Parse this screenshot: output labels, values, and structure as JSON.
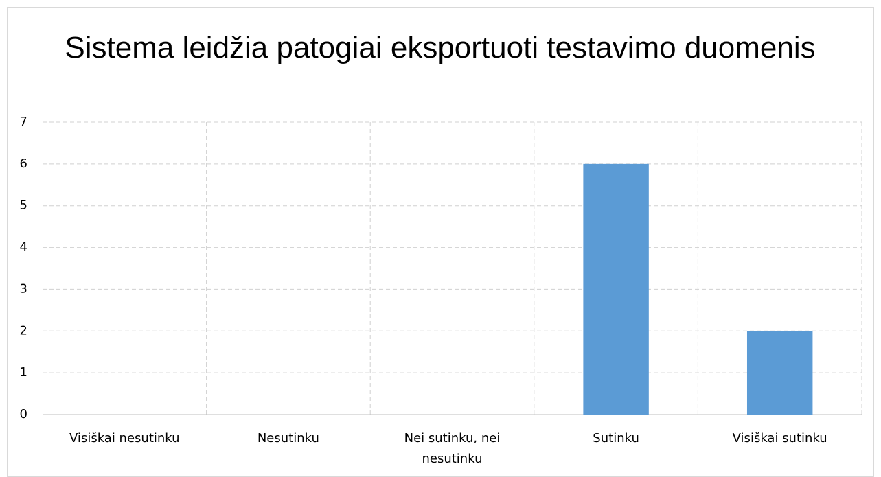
{
  "chart_data": {
    "type": "bar",
    "title": "Sistema leidžia patogiai eksportuoti testavimo duomenis",
    "categories": [
      "Visiškai nesutinku",
      "Nesutinku",
      "Nei sutinku, nei nesutinku",
      "Sutinku",
      "Visiškai sutinku"
    ],
    "values": [
      0,
      0,
      0,
      6,
      2
    ],
    "color": "#5b9bd5",
    "ylim": [
      0,
      7
    ],
    "yticks": [
      0,
      1,
      2,
      3,
      4,
      5,
      6,
      7
    ],
    "grid": true
  }
}
